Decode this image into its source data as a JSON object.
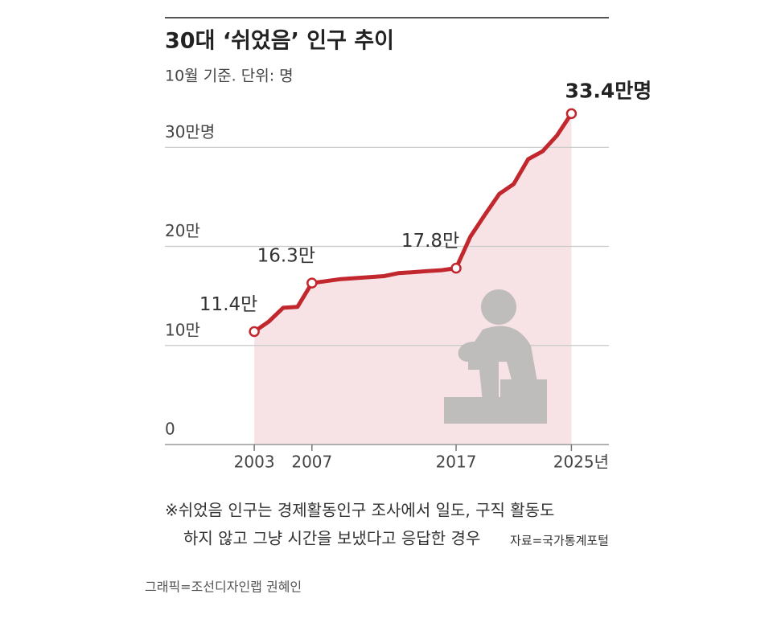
{
  "chart_data": {
    "type": "line",
    "title": "30대 ‘쉬었음’ 인구 추이",
    "subtitle": "10월 기준. 단위: 명",
    "x": [
      2003,
      2004,
      2005,
      2006,
      2007,
      2008,
      2009,
      2010,
      2011,
      2012,
      2013,
      2014,
      2015,
      2016,
      2017,
      2018,
      2019,
      2020,
      2021,
      2022,
      2023,
      2024,
      2025
    ],
    "series": [
      {
        "color": "#c1272d",
        "area_color": "#f7e3e6",
        "values": [
          11.4,
          12.4,
          13.8,
          13.9,
          16.3,
          16.5,
          16.7,
          16.8,
          16.9,
          17.0,
          17.3,
          17.4,
          17.5,
          17.6,
          17.8,
          21.0,
          23.2,
          25.3,
          26.3,
          28.8,
          29.6,
          31.2,
          33.4
        ],
        "value_labels": [
          "11.4만",
          null,
          null,
          null,
          "16.3만",
          null,
          null,
          null,
          null,
          null,
          null,
          null,
          null,
          null,
          "17.8만",
          null,
          null,
          null,
          null,
          null,
          null,
          null,
          "33.4만명"
        ]
      }
    ],
    "xlim": [
      1996.8,
      2027.6
    ],
    "xticks": [
      2003,
      2007,
      2017,
      {
        "value": 2025,
        "label": "2025년"
      }
    ],
    "ylim": [
      0,
      34
    ],
    "yticks": [
      0,
      {
        "value": 10,
        "label": "10만"
      },
      {
        "value": 20,
        "label": "20만"
      },
      {
        "value": 30,
        "label": "30만명"
      }
    ],
    "grid": true,
    "footnote": [
      "※쉬었음 인구는 경제활동인구 조사에서 일도, 구직 활동도",
      "하지 않고 그냥 시간을 보냈다고 응답한 경우"
    ],
    "source": "자료=국가통계포털",
    "credit": "그래픽=조선디자인랩 권혜인"
  }
}
